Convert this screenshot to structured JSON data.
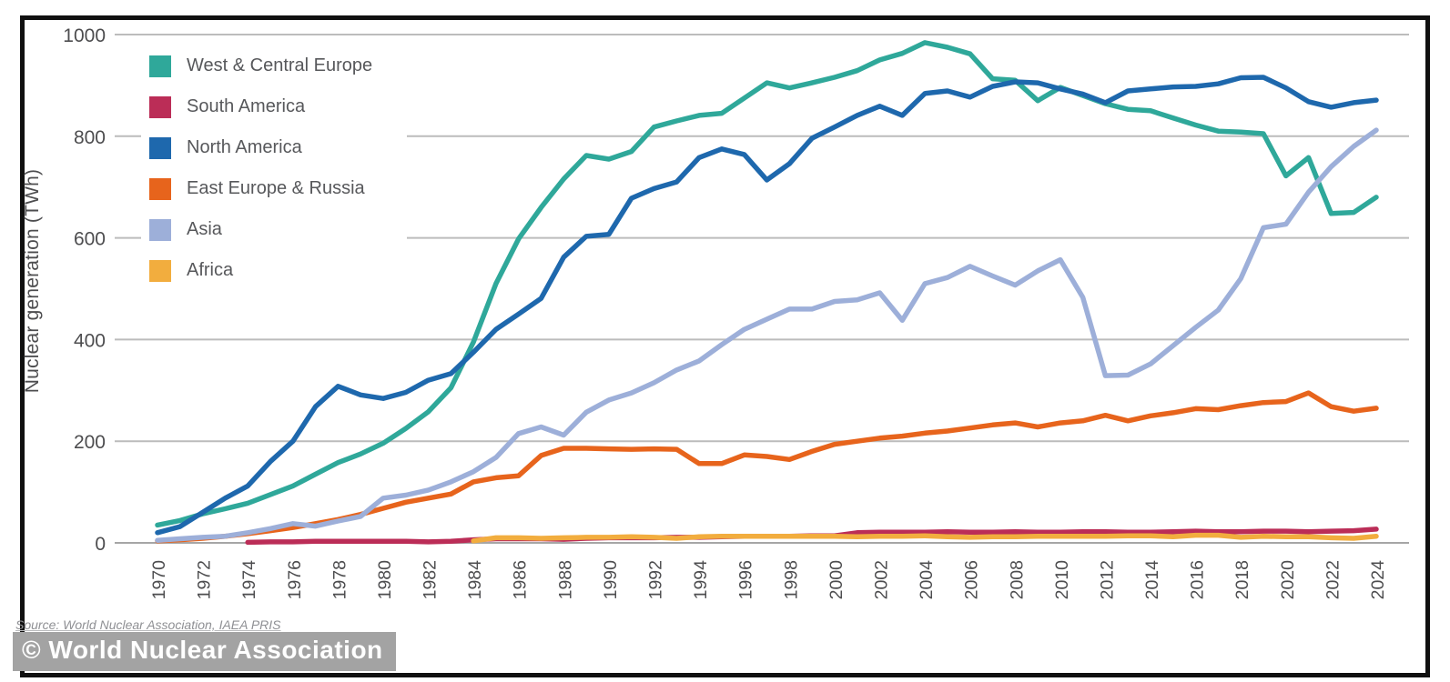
{
  "footer": {
    "source": "Source: World Nuclear Association, IAEA PRIS",
    "watermark": "© World Nuclear Association"
  },
  "style_colors": {
    "grid": "#bcbcbc",
    "zero_axis": "#a6a6a6",
    "tick_label": "#4d4d4f",
    "legend_text": "#57585b"
  },
  "chart_data": {
    "type": "line",
    "title": "",
    "xlabel": "",
    "ylabel": "Nuclear generation (TWh)",
    "ylim": [
      0,
      1000
    ],
    "yticks": [
      0,
      200,
      400,
      600,
      800,
      1000
    ],
    "xtick_years": [
      1970,
      1972,
      1974,
      1976,
      1978,
      1980,
      1982,
      1984,
      1986,
      1988,
      1990,
      1992,
      1994,
      1996,
      1998,
      2000,
      2002,
      2004,
      2006,
      2008,
      2010,
      2012,
      2014,
      2016,
      2018,
      2020,
      2022,
      2024
    ],
    "grid": true,
    "legend_position": "top-left",
    "x": [
      1970,
      1971,
      1972,
      1973,
      1974,
      1975,
      1976,
      1977,
      1978,
      1979,
      1980,
      1981,
      1982,
      1983,
      1984,
      1985,
      1986,
      1987,
      1988,
      1989,
      1990,
      1991,
      1992,
      1993,
      1994,
      1995,
      1996,
      1997,
      1998,
      1999,
      2000,
      2001,
      2002,
      2003,
      2004,
      2005,
      2006,
      2007,
      2008,
      2009,
      2010,
      2011,
      2012,
      2013,
      2014,
      2015,
      2016,
      2017,
      2018,
      2019,
      2020,
      2021,
      2022,
      2023,
      2024
    ],
    "series": [
      {
        "name": "West & Central Europe",
        "color": "#2fa89a",
        "values": [
          35,
          44,
          57,
          67,
          78,
          95,
          112,
          135,
          158,
          175,
          196,
          225,
          258,
          305,
          395,
          510,
          598,
          660,
          716,
          762,
          755,
          770,
          818,
          830,
          841,
          845,
          875,
          905,
          895,
          905,
          916,
          929,
          950,
          963,
          984,
          975,
          962,
          913,
          910,
          870,
          896,
          880,
          864,
          853,
          850,
          836,
          822,
          810,
          808,
          805,
          722,
          758,
          648,
          650,
          680
        ]
      },
      {
        "name": "South America",
        "color": "#bb2d57",
        "values": [
          null,
          null,
          null,
          null,
          1,
          2,
          2,
          3,
          3,
          3,
          3,
          3,
          2,
          3,
          6,
          8,
          8,
          8,
          7,
          9,
          10,
          10,
          10,
          11,
          11,
          12,
          13,
          13,
          13,
          14,
          14,
          20,
          21,
          21,
          21,
          22,
          21,
          21,
          22,
          21,
          21,
          22,
          22,
          21,
          21,
          22,
          23,
          22,
          22,
          23,
          23,
          22,
          23,
          24,
          27
        ]
      },
      {
        "name": "North America",
        "color": "#1e68ad",
        "values": [
          20,
          32,
          60,
          88,
          112,
          160,
          200,
          268,
          308,
          291,
          284,
          296,
          320,
          333,
          375,
          420,
          450,
          481,
          562,
          603,
          607,
          678,
          697,
          710,
          758,
          775,
          764,
          714,
          746,
          796,
          818,
          841,
          859,
          841,
          884,
          889,
          877,
          898,
          907,
          905,
          893,
          883,
          866,
          889,
          893,
          897,
          898,
          903,
          915,
          916,
          895,
          868,
          857,
          866,
          871
        ]
      },
      {
        "name": "East Europe & Russia",
        "color": "#e7641c",
        "values": [
          4,
          6,
          9,
          13,
          18,
          24,
          30,
          38,
          46,
          56,
          68,
          80,
          88,
          96,
          120,
          128,
          132,
          172,
          186,
          186,
          185,
          184,
          185,
          184,
          156,
          156,
          173,
          170,
          164,
          180,
          194,
          200,
          206,
          210,
          216,
          220,
          226,
          232,
          236,
          228,
          236,
          240,
          251,
          240,
          250,
          256,
          264,
          262,
          270,
          276,
          278,
          295,
          268,
          259,
          265
        ]
      },
      {
        "name": "Asia",
        "color": "#9dafd9",
        "values": [
          5,
          8,
          11,
          13,
          20,
          28,
          38,
          33,
          43,
          52,
          88,
          94,
          104,
          120,
          140,
          168,
          215,
          228,
          212,
          257,
          281,
          295,
          315,
          340,
          358,
          390,
          420,
          440,
          460,
          460,
          475,
          478,
          492,
          438,
          510,
          522,
          544,
          525,
          507,
          535,
          557,
          483,
          329,
          330,
          352,
          388,
          424,
          458,
          520,
          620,
          627,
          690,
          740,
          780,
          812
        ]
      },
      {
        "name": "Africa",
        "color": "#f2ad3e",
        "values": [
          null,
          null,
          null,
          null,
          null,
          null,
          null,
          null,
          null,
          null,
          null,
          null,
          null,
          null,
          4,
          10,
          10,
          9,
          10,
          11,
          11,
          12,
          11,
          9,
          12,
          13,
          13,
          13,
          13,
          13,
          13,
          12,
          13,
          13,
          14,
          12,
          11,
          12,
          12,
          13,
          13,
          13,
          13,
          14,
          14,
          12,
          15,
          15,
          11,
          13,
          12,
          12,
          10,
          9,
          13
        ]
      }
    ]
  }
}
